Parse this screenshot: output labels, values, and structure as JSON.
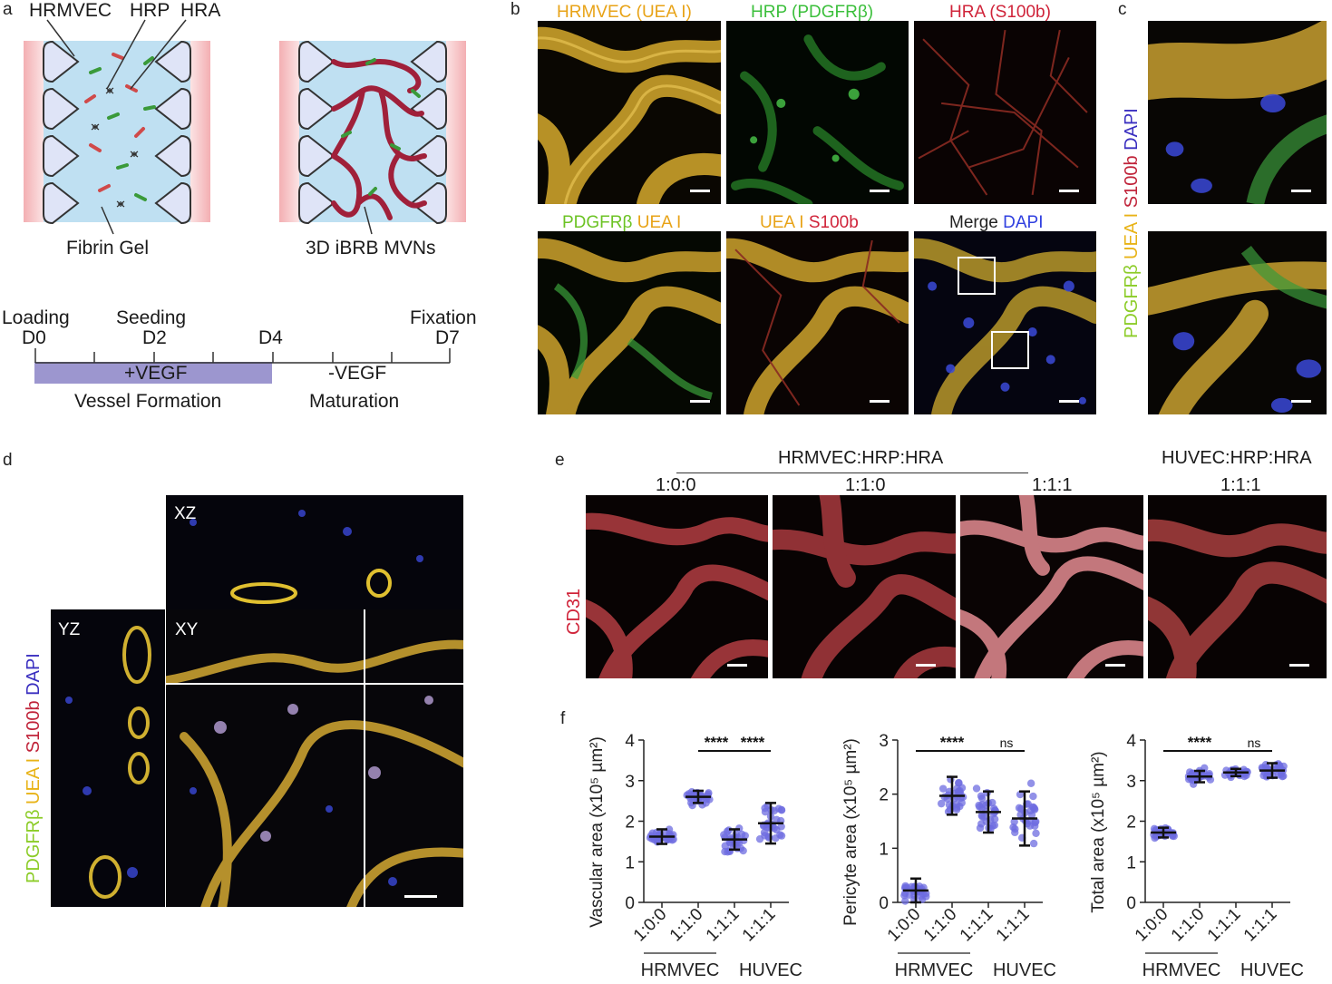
{
  "panels": {
    "a": "a",
    "b": "b",
    "c": "c",
    "d": "d",
    "e": "e",
    "f": "f"
  },
  "schematic": {
    "labels": {
      "cell1": "HRMVEC",
      "cell2": "HRP",
      "cell3": "HRA",
      "gel": "Fibrin Gel",
      "mvn": "3D iBRB MVNs"
    },
    "timeline": {
      "loading": "Loading",
      "d0": "D0",
      "seeding": "Seeding",
      "d2": "D2",
      "d4": "D4",
      "fixation": "Fixation",
      "d7": "D7",
      "plus_vegf": "+VEGF",
      "minus_vegf": "-VEGF",
      "formation": "Vessel Formation",
      "maturation": "Maturation",
      "bar_color": "#9c96cf"
    }
  },
  "panel_b": {
    "titles": [
      {
        "parts": [
          {
            "text": "HRMVEC (UEA I)",
            "color": "#e8a317"
          }
        ]
      },
      {
        "parts": [
          {
            "text": "HRP (PDGFRβ)",
            "color": "#3bbf3b"
          }
        ]
      },
      {
        "parts": [
          {
            "text": "HRA (S100b)",
            "color": "#d0243a"
          }
        ]
      },
      {
        "parts": [
          {
            "text": "PDGFRβ ",
            "color": "#6cc324"
          },
          {
            "text": "UEA I",
            "color": "#e8a317"
          }
        ]
      },
      {
        "parts": [
          {
            "text": "UEA I ",
            "color": "#e8a317"
          },
          {
            "text": "S100b",
            "color": "#d0243a"
          }
        ]
      },
      {
        "parts": [
          {
            "text": "Merge ",
            "color": "#222222"
          },
          {
            "text": "DAPI",
            "color": "#3040e0"
          }
        ]
      }
    ]
  },
  "panel_c": {
    "label_parts": [
      {
        "text": "PDGFRβ ",
        "color": "#8ccc28"
      },
      {
        "text": "UEA I ",
        "color": "#e8b317"
      },
      {
        "text": "S100b ",
        "color": "#c0243a"
      },
      {
        "text": "DAPI",
        "color": "#3a2fc0"
      }
    ]
  },
  "panel_d": {
    "xz": "XZ",
    "yz": "YZ",
    "xy": "XY",
    "label_parts": [
      {
        "text": "PDGFRβ ",
        "color": "#8ccc28"
      },
      {
        "text": "UEA I ",
        "color": "#e8b317"
      },
      {
        "text": "S100b ",
        "color": "#c0243a"
      },
      {
        "text": "DAPI",
        "color": "#3a2fc0"
      }
    ]
  },
  "panel_e": {
    "group1": "HRMVEC:HRP:HRA",
    "group2": "HUVEC:HRP:HRA",
    "ratios": [
      "1:0:0",
      "1:1:0",
      "1:1:1",
      "1:1:1"
    ],
    "stain": "CD31",
    "stain_color": "#d0243a"
  },
  "chart_data": [
    {
      "type": "scatter",
      "ylabel": "Vascular area (x10⁵ µm²)",
      "ylim": [
        0,
        4
      ],
      "yticks": [
        "0",
        "1",
        "2",
        "3",
        "4"
      ],
      "categories": [
        "1:0:0",
        "1:1:0",
        "1:1:1",
        "1:1:1"
      ],
      "groups": [
        {
          "text": "HRMVEC",
          "span": [
            0,
            1
          ]
        },
        {
          "text": "HUVEC",
          "span": [
            3,
            3
          ]
        }
      ],
      "means": [
        1.62,
        2.6,
        1.55,
        1.95
      ],
      "sd": [
        0.18,
        0.15,
        0.25,
        0.5
      ],
      "spread": [
        0.15,
        0.15,
        0.25,
        0.5
      ],
      "significance": [
        {
          "from": 1,
          "to": 2,
          "label": "****"
        },
        {
          "from": 2,
          "to": 3,
          "label": "****"
        }
      ],
      "dot_color": "#6d6ce0"
    },
    {
      "type": "scatter",
      "ylabel": "Pericyte area (x10⁵ µm²)",
      "ylim": [
        0,
        3
      ],
      "yticks": [
        "0",
        "1",
        "2",
        "3"
      ],
      "categories": [
        "1:0:0",
        "1:1:0",
        "1:1:1",
        "1:1:1"
      ],
      "groups": [
        {
          "text": "HRMVEC",
          "span": [
            0,
            1
          ]
        },
        {
          "text": "HUVEC",
          "span": [
            3,
            3
          ]
        }
      ],
      "means": [
        0.22,
        1.97,
        1.67,
        1.55
      ],
      "sd": [
        0.22,
        0.35,
        0.38,
        0.5
      ],
      "spread": [
        0.2,
        0.35,
        0.38,
        0.5
      ],
      "significance": [
        {
          "from": 0,
          "to": 2,
          "label": "****"
        },
        {
          "from": 2,
          "to": 3,
          "label": "ns"
        }
      ],
      "dot_color": "#6d6ce0"
    },
    {
      "type": "scatter",
      "ylabel": "Total area (x10⁵ µm²)",
      "ylim": [
        0,
        4
      ],
      "yticks": [
        "0",
        "1",
        "2",
        "3",
        "4"
      ],
      "categories": [
        "1:0:0",
        "1:1:0",
        "1:1:1",
        "1:1:1"
      ],
      "groups": [
        {
          "text": "HRMVEC",
          "span": [
            0,
            1
          ]
        },
        {
          "text": "HUVEC",
          "span": [
            3,
            3
          ]
        }
      ],
      "means": [
        1.72,
        3.1,
        3.2,
        3.25
      ],
      "sd": [
        0.12,
        0.14,
        0.09,
        0.18
      ],
      "spread": [
        0.12,
        0.15,
        0.1,
        0.18
      ],
      "significance": [
        {
          "from": 0,
          "to": 2,
          "label": "****"
        },
        {
          "from": 2,
          "to": 3,
          "label": "ns"
        }
      ],
      "dot_color": "#6d6ce0"
    }
  ]
}
